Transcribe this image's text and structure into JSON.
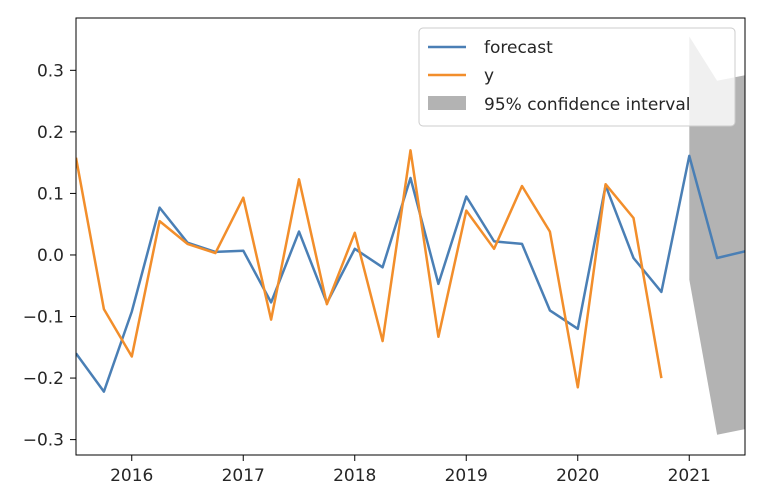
{
  "chart_data": {
    "type": "line",
    "title": "",
    "xlabel": "",
    "ylabel": "",
    "xlim": [
      2015.5,
      2021.5
    ],
    "ylim": [
      -0.325,
      0.385
    ],
    "x_ticks": [
      {
        "value": 2016,
        "label": "2016"
      },
      {
        "value": 2017,
        "label": "2017"
      },
      {
        "value": 2018,
        "label": "2018"
      },
      {
        "value": 2019,
        "label": "2019"
      },
      {
        "value": 2020,
        "label": "2020"
      },
      {
        "value": 2021,
        "label": "2021"
      }
    ],
    "y_ticks": [
      {
        "value": 0.3,
        "label": "0.3"
      },
      {
        "value": 0.2,
        "label": "0.2"
      },
      {
        "value": 0.1,
        "label": "0.1"
      },
      {
        "value": 0.0,
        "label": "0.0"
      },
      {
        "value": -0.1,
        "label": "−0.1"
      },
      {
        "value": -0.2,
        "label": "−0.2"
      },
      {
        "value": -0.3,
        "label": "−0.3"
      }
    ],
    "grid": false,
    "legend_position": "top-right",
    "series": [
      {
        "name": "forecast",
        "color": "#4a7fb5",
        "x": [
          2015.5,
          2015.75,
          2016.0,
          2016.25,
          2016.5,
          2016.75,
          2017.0,
          2017.25,
          2017.5,
          2017.75,
          2018.0,
          2018.25,
          2018.5,
          2018.75,
          2019.0,
          2019.25,
          2019.5,
          2019.75,
          2020.0,
          2020.25,
          2020.5,
          2020.75,
          2021.0,
          2021.25,
          2021.5
        ],
        "values": [
          -0.16,
          -0.222,
          -0.092,
          0.077,
          0.02,
          0.005,
          0.007,
          -0.077,
          0.038,
          -0.078,
          0.01,
          -0.02,
          0.125,
          -0.047,
          0.095,
          0.022,
          0.018,
          -0.09,
          -0.12,
          0.113,
          -0.005,
          -0.06,
          0.161,
          -0.005,
          0.006
        ]
      },
      {
        "name": "y",
        "color": "#f28e2b",
        "x": [
          2015.5,
          2015.75,
          2016.0,
          2016.25,
          2016.5,
          2016.75,
          2017.0,
          2017.25,
          2017.5,
          2017.75,
          2018.0,
          2018.25,
          2018.5,
          2018.75,
          2019.0,
          2019.25,
          2019.5,
          2019.75,
          2020.0,
          2020.25,
          2020.5,
          2020.75
        ],
        "values": [
          0.158,
          -0.088,
          -0.165,
          0.055,
          0.018,
          0.003,
          0.093,
          -0.105,
          0.123,
          -0.08,
          0.036,
          -0.14,
          0.17,
          -0.133,
          0.072,
          0.01,
          0.112,
          0.038,
          -0.215,
          0.115,
          0.06,
          -0.2
        ]
      }
    ],
    "confidence_interval": {
      "name": "95% confidence interval",
      "color": "#b3b3b3",
      "x": [
        2021.0,
        2021.25,
        2021.5
      ],
      "upper": [
        0.355,
        0.283,
        0.292
      ],
      "lower": [
        -0.04,
        -0.292,
        -0.283
      ]
    }
  }
}
